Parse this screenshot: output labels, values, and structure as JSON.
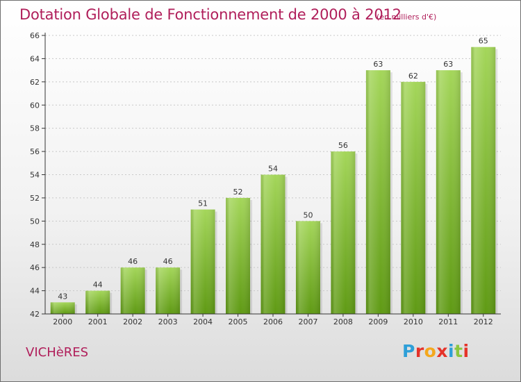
{
  "header": {
    "title": "Dotation Globale de Fonctionnement de 2000 à 2012",
    "unit": "(en milliers d'€)"
  },
  "footer": {
    "commune": "VICHèRES",
    "logo": [
      "P",
      "r",
      "o",
      "x",
      "i",
      "t",
      "i"
    ],
    "logo_colors": [
      "#2e9fd8",
      "#e5332a",
      "#f4a81d",
      "#e5332a",
      "#2e9fd8",
      "#8cc63f",
      "#e5332a"
    ]
  },
  "colors": {
    "bar_top": "#a4d65a",
    "bar_bottom": "#5f9a14",
    "title": "#b01e5a",
    "axis": "#333333",
    "grid": "#c8c8c8"
  },
  "chart_data": {
    "type": "bar",
    "categories": [
      "2000",
      "2001",
      "2002",
      "2003",
      "2004",
      "2005",
      "2006",
      "2007",
      "2008",
      "2009",
      "2010",
      "2011",
      "2012"
    ],
    "values": [
      43,
      44,
      46,
      46,
      51,
      52,
      54,
      50,
      56,
      63,
      62,
      63,
      65
    ],
    "ylim": [
      42,
      66
    ],
    "yticks": [
      42,
      44,
      46,
      48,
      50,
      52,
      54,
      56,
      58,
      60,
      62,
      64,
      66
    ],
    "grid": true,
    "legend": "none"
  }
}
